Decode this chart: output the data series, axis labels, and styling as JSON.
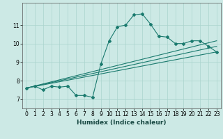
{
  "title": "",
  "xlabel": "Humidex (Indice chaleur)",
  "background_color": "#cce9e5",
  "line_color": "#1a7a6e",
  "grid_color": "#aad4ce",
  "xlim": [
    -0.5,
    23.5
  ],
  "ylim": [
    6.5,
    12.2
  ],
  "yticks": [
    7,
    8,
    9,
    10,
    11
  ],
  "xticks": [
    0,
    1,
    2,
    3,
    4,
    5,
    6,
    7,
    8,
    9,
    10,
    11,
    12,
    13,
    14,
    15,
    16,
    17,
    18,
    19,
    20,
    21,
    22,
    23
  ],
  "series1_x": [
    0,
    1,
    2,
    3,
    4,
    5,
    6,
    7,
    8,
    9,
    10,
    11,
    12,
    13,
    14,
    15,
    16,
    17,
    18,
    19,
    20,
    21,
    22,
    23
  ],
  "series1_y": [
    7.6,
    7.7,
    7.5,
    7.7,
    7.65,
    7.7,
    7.2,
    7.2,
    7.1,
    8.9,
    10.15,
    10.9,
    11.0,
    11.55,
    11.6,
    11.05,
    10.4,
    10.35,
    10.0,
    10.0,
    10.15,
    10.15,
    9.85,
    9.55
  ],
  "series2_x": [
    0,
    23
  ],
  "series2_y": [
    7.6,
    9.55
  ],
  "series3_x": [
    0,
    23
  ],
  "series3_y": [
    7.6,
    10.15
  ],
  "series4_x": [
    0,
    23
  ],
  "series4_y": [
    7.6,
    9.85
  ]
}
